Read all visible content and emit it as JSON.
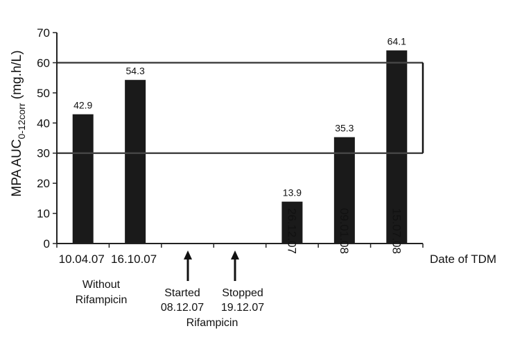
{
  "chart_data": {
    "type": "bar",
    "ylabel_main": "MPA AUC",
    "ylabel_sub": "0-12corr",
    "ylabel_unit": " (mg.h/L)",
    "xlabel": "Date of TDM",
    "ylim": [
      0,
      70
    ],
    "yticks": [
      0,
      10,
      20,
      30,
      40,
      50,
      60,
      70
    ],
    "grid": false,
    "therapeutic_range": [
      30,
      60
    ],
    "categories": [
      "10.04.07",
      "16.10.07",
      "",
      "",
      "26.12.07",
      "09.01.08",
      "15.07.08"
    ],
    "values": [
      42.9,
      54.3,
      null,
      null,
      13.9,
      35.3,
      64.1
    ],
    "value_labels": [
      "42.9",
      "54.3",
      "",
      "",
      "13.9",
      "35.3",
      "64.1"
    ],
    "annotations": {
      "without_1": "Without",
      "without_2": "Rifampicin",
      "started_1": "Started",
      "started_2": "08.12.07",
      "stopped_1": "Stopped",
      "stopped_2": "19.12.07",
      "rifampicin": "Rifampicin"
    },
    "colors": {
      "bar": "#1a1a1a",
      "axis": "#222222",
      "range_line": "#444444"
    }
  }
}
